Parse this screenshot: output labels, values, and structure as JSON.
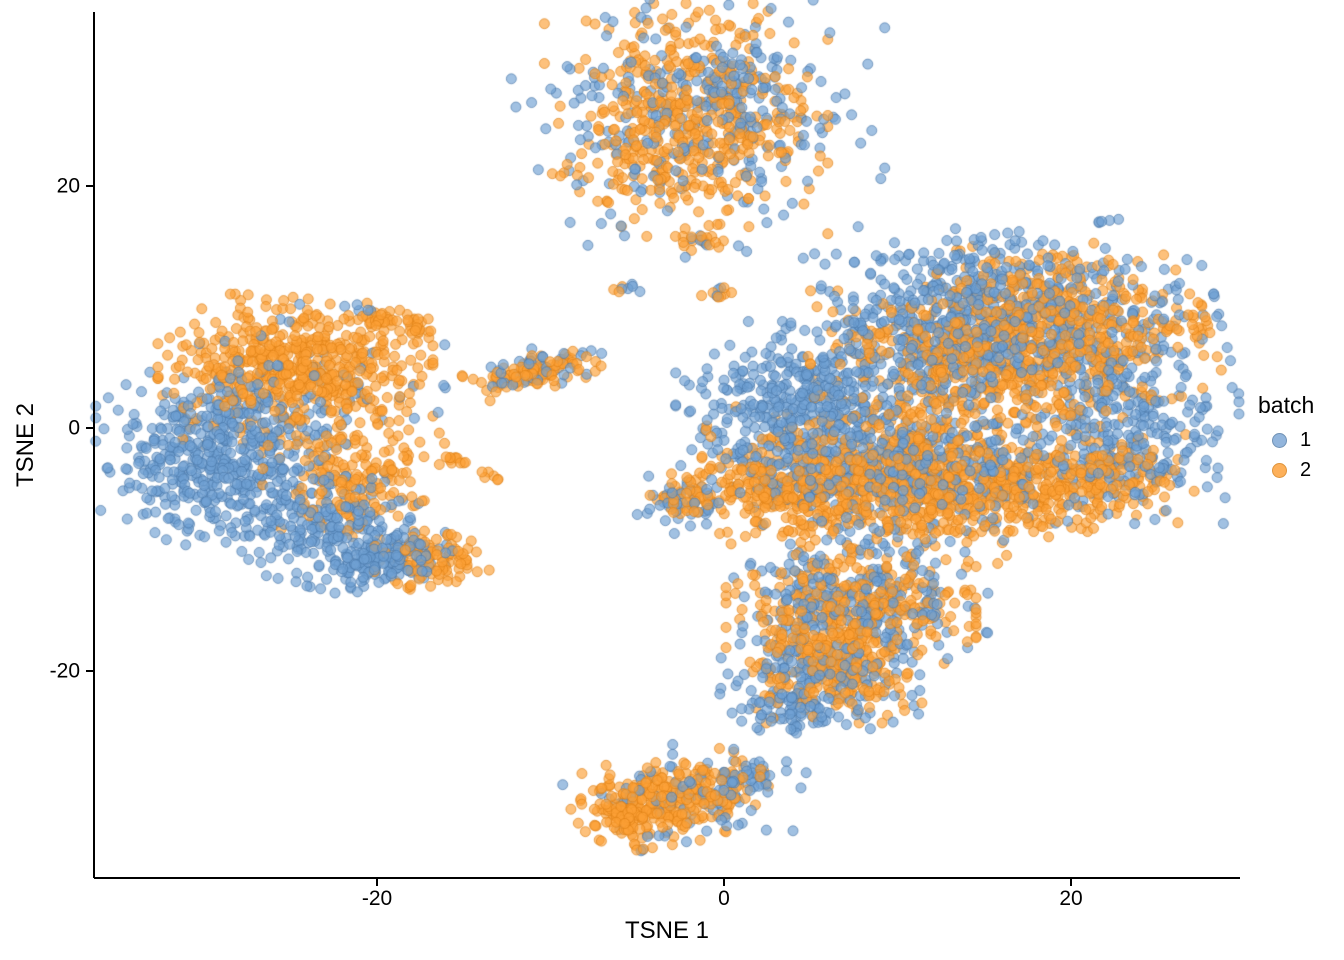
{
  "chart_data": {
    "type": "scatter",
    "title": "",
    "xlabel": "TSNE 1",
    "ylabel": "TSNE 2",
    "xlim": [
      -36.3,
      29.7
    ],
    "ylim": [
      -37.1,
      34.3
    ],
    "x_ticks": [
      -20,
      0,
      20
    ],
    "y_ticks": [
      20,
      0,
      -20
    ],
    "x_tick_labels": [
      "-20",
      "0",
      "20"
    ],
    "y_tick_labels": [
      "20",
      "0",
      "-20"
    ],
    "grid": false,
    "seed": 42,
    "legend": {
      "title": "batch",
      "position": "right",
      "entries": [
        {
          "label": "1",
          "color": "#7FA8D6",
          "border": "#587FA9"
        },
        {
          "label": "2",
          "color": "#FDA33E",
          "border": "#D9821B"
        }
      ]
    },
    "style": {
      "point_radius_px": 5,
      "point_opacity": 0.65,
      "batch1_fill": "#6FA0D2",
      "batch1_stroke": "#4877A8",
      "batch2_fill": "#FC9F35",
      "batch2_stroke": "#DD7F14"
    },
    "clusters": [
      {
        "batch": 2,
        "cx": -2.2,
        "cy": 25.4,
        "sx": 3.4,
        "sy": 4.0,
        "n": 520
      },
      {
        "batch": 1,
        "cx": -1.8,
        "cy": 25.6,
        "sx": 4.6,
        "sy": 4.8,
        "n": 260
      },
      {
        "batch": 1,
        "cx": 0.9,
        "cy": 29.3,
        "sx": 1.3,
        "sy": 1.2,
        "n": 40
      },
      {
        "batch": 2,
        "cx": -1.3,
        "cy": 15.3,
        "sx": 0.7,
        "sy": 0.35,
        "n": 14
      },
      {
        "batch": 1,
        "cx": -0.9,
        "cy": 15.4,
        "sx": 0.5,
        "sy": 0.3,
        "n": 5
      },
      {
        "batch": 1,
        "cx": -5.6,
        "cy": 11.4,
        "sx": 0.4,
        "sy": 0.25,
        "n": 5
      },
      {
        "batch": 2,
        "cx": -5.8,
        "cy": 11.3,
        "sx": 0.3,
        "sy": 0.2,
        "n": 3
      },
      {
        "batch": 2,
        "cx": -0.3,
        "cy": 11.2,
        "sx": 0.5,
        "sy": 0.3,
        "n": 8
      },
      {
        "batch": 1,
        "cx": -0.1,
        "cy": 11.3,
        "sx": 0.4,
        "sy": 0.25,
        "n": 3
      },
      {
        "batch": 2,
        "cx": -24.7,
        "cy": 4.8,
        "sx": 3.3,
        "sy": 2.6,
        "n": 600
      },
      {
        "batch": 2,
        "cx": -21.3,
        "cy": -3.9,
        "sx": 2.2,
        "sy": 2.2,
        "n": 180
      },
      {
        "batch": 1,
        "cx": -29.0,
        "cy": -2.6,
        "sx": 3.0,
        "sy": 3.0,
        "n": 520
      },
      {
        "batch": 1,
        "cx": -24.5,
        "cy": 3.0,
        "sx": 3.5,
        "sy": 3.0,
        "n": 70
      },
      {
        "batch": 1,
        "cx": -22.7,
        "cy": -8.4,
        "sx": 2.8,
        "sy": 2.0,
        "n": 220,
        "rot": -20
      },
      {
        "batch": 1,
        "cx": -19.5,
        "cy": -10.9,
        "sx": 1.6,
        "sy": 1.0,
        "n": 130
      },
      {
        "batch": 2,
        "cx": -16.9,
        "cy": -10.9,
        "sx": 1.4,
        "sy": 1.0,
        "n": 110
      },
      {
        "batch": 2,
        "cx": -19.7,
        "cy": 8.9,
        "sx": 0.6,
        "sy": 0.5,
        "n": 30
      },
      {
        "batch": 2,
        "cx": -17.8,
        "cy": 8.5,
        "sx": 0.5,
        "sy": 0.4,
        "n": 18
      },
      {
        "batch": 1,
        "cx": -20.9,
        "cy": 9.7,
        "sx": 0.4,
        "sy": 0.3,
        "n": 5
      },
      {
        "batch": 1,
        "cx": -16.1,
        "cy": 3.5,
        "sx": 0.15,
        "sy": 0.15,
        "n": 2
      },
      {
        "batch": 2,
        "cx": -10.9,
        "cy": 4.6,
        "sx": 1.7,
        "sy": 0.6,
        "n": 110,
        "rot": 18
      },
      {
        "batch": 1,
        "cx": -11.2,
        "cy": 4.6,
        "sx": 1.9,
        "sy": 0.75,
        "n": 45,
        "rot": 18
      },
      {
        "batch": 2,
        "cx": -15.3,
        "cy": -2.8,
        "sx": 0.45,
        "sy": 0.3,
        "n": 10
      },
      {
        "batch": 2,
        "cx": -13.5,
        "cy": -4.0,
        "sx": 0.35,
        "sy": 0.25,
        "n": 6
      },
      {
        "batch": 1,
        "cx": 4.4,
        "cy": 1.1,
        "sx": 3.0,
        "sy": 3.2,
        "n": 420
      },
      {
        "batch": 1,
        "cx": 15.3,
        "cy": 8.1,
        "sx": 5.5,
        "sy": 3.2,
        "n": 750,
        "rot": 10
      },
      {
        "batch": 1,
        "cx": 23.4,
        "cy": -0.2,
        "sx": 2.6,
        "sy": 3.2,
        "n": 260
      },
      {
        "batch": 1,
        "cx": 11.3,
        "cy": -3.5,
        "sx": 4.5,
        "sy": 2.8,
        "n": 420
      },
      {
        "batch": 1,
        "cx": 7.5,
        "cy": -14.2,
        "sx": 3.2,
        "sy": 2.6,
        "n": 280
      },
      {
        "batch": 1,
        "cx": 5.5,
        "cy": -20.8,
        "sx": 2.4,
        "sy": 2.2,
        "n": 170
      },
      {
        "batch": 1,
        "cx": 3.8,
        "cy": -23.7,
        "sx": 1.2,
        "sy": 1.0,
        "n": 45
      },
      {
        "batch": 1,
        "cx": -2.2,
        "cy": -6.3,
        "sx": 1.3,
        "sy": 1.0,
        "n": 45
      },
      {
        "batch": 1,
        "cx": 13.6,
        "cy": 13.0,
        "sx": 3.5,
        "sy": 1.5,
        "n": 70
      },
      {
        "batch": 2,
        "cx": 16.5,
        "cy": 6.4,
        "sx": 4.8,
        "sy": 3.0,
        "n": 850,
        "rot": 12
      },
      {
        "batch": 2,
        "cx": 10.1,
        "cy": -4.3,
        "sx": 4.8,
        "sy": 2.6,
        "n": 750,
        "rot": -6
      },
      {
        "batch": 2,
        "cx": 3.2,
        "cy": -5.1,
        "sx": 2.6,
        "sy": 1.6,
        "n": 220
      },
      {
        "batch": 2,
        "cx": 19.4,
        "cy": -4.7,
        "sx": 2.8,
        "sy": 1.6,
        "n": 220
      },
      {
        "batch": 2,
        "cx": 7.3,
        "cy": -15.0,
        "sx": 3.0,
        "sy": 2.2,
        "n": 320
      },
      {
        "batch": 2,
        "cx": 6.1,
        "cy": -20.0,
        "sx": 2.2,
        "sy": 1.8,
        "n": 230
      },
      {
        "batch": 2,
        "cx": 23.7,
        "cy": -3.5,
        "sx": 1.4,
        "sy": 1.4,
        "n": 60
      },
      {
        "batch": 2,
        "cx": -2.5,
        "cy": -5.9,
        "sx": 1.0,
        "sy": 0.8,
        "n": 35
      },
      {
        "batch": 2,
        "cx": 18.8,
        "cy": 11.4,
        "sx": 3.0,
        "sy": 1.6,
        "n": 90
      },
      {
        "batch": 2,
        "cx": -3.1,
        "cy": -30.7,
        "sx": 2.4,
        "sy": 1.5,
        "n": 300,
        "rot": 12
      },
      {
        "batch": 1,
        "cx": -2.0,
        "cy": -30.3,
        "sx": 2.9,
        "sy": 1.8,
        "n": 100,
        "rot": 12
      },
      {
        "batch": 2,
        "cx": -5.7,
        "cy": -31.9,
        "sx": 0.8,
        "sy": 0.9,
        "n": 50
      },
      {
        "batch": 1,
        "cx": 1.5,
        "cy": -28.6,
        "sx": 0.7,
        "sy": 0.6,
        "n": 25
      }
    ]
  }
}
